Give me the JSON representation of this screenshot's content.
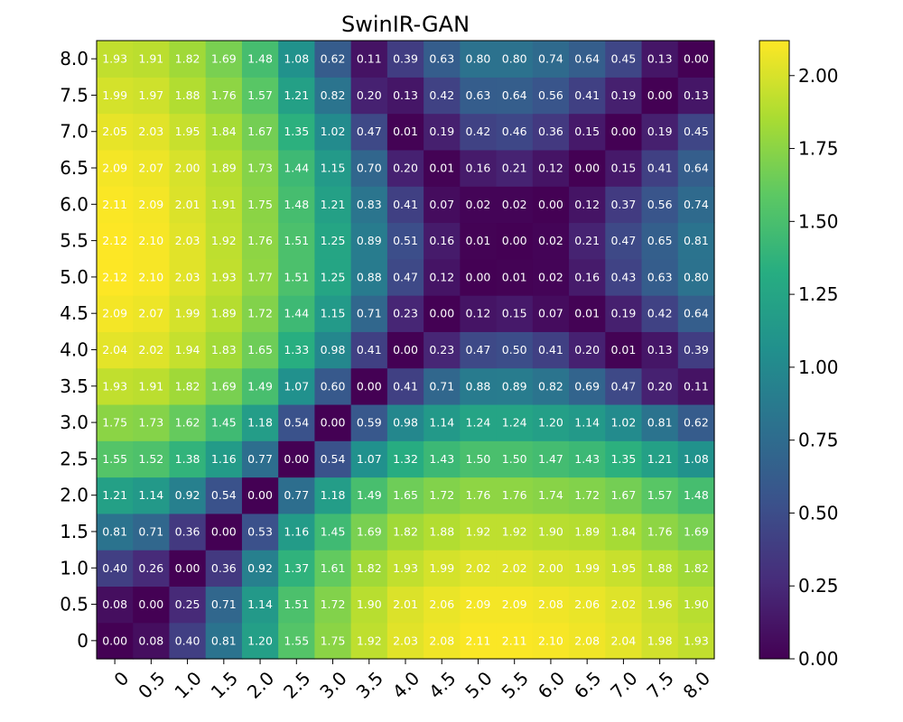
{
  "chart_data": {
    "type": "heatmap",
    "title": "SwinIR-GAN",
    "xlabel": "",
    "ylabel": "",
    "x_categories": [
      "0",
      "0.5",
      "1.0",
      "1.5",
      "2.0",
      "2.5",
      "3.0",
      "3.5",
      "4.0",
      "4.5",
      "5.0",
      "5.5",
      "6.0",
      "6.5",
      "7.0",
      "7.5",
      "8.0"
    ],
    "y_categories": [
      "0",
      "0.5",
      "1.0",
      "1.5",
      "2.0",
      "2.5",
      "3.0",
      "3.5",
      "4.0",
      "4.5",
      "5.0",
      "5.5",
      "6.0",
      "6.5",
      "7.0",
      "7.5",
      "8.0"
    ],
    "values_by_y": [
      [
        "0.00",
        "0.08",
        "0.40",
        "0.81",
        "1.20",
        "1.55",
        "1.75",
        "1.92",
        "2.03",
        "2.08",
        "2.11",
        "2.11",
        "2.10",
        "2.08",
        "2.04",
        "1.98",
        "1.93"
      ],
      [
        "0.08",
        "0.00",
        "0.25",
        "0.71",
        "1.14",
        "1.51",
        "1.72",
        "1.90",
        "2.01",
        "2.06",
        "2.09",
        "2.09",
        "2.08",
        "2.06",
        "2.02",
        "1.96",
        "1.90"
      ],
      [
        "0.40",
        "0.26",
        "0.00",
        "0.36",
        "0.92",
        "1.37",
        "1.61",
        "1.82",
        "1.93",
        "1.99",
        "2.02",
        "2.02",
        "2.00",
        "1.99",
        "1.95",
        "1.88",
        "1.82"
      ],
      [
        "0.81",
        "0.71",
        "0.36",
        "0.00",
        "0.53",
        "1.16",
        "1.45",
        "1.69",
        "1.82",
        "1.88",
        "1.92",
        "1.92",
        "1.90",
        "1.89",
        "1.84",
        "1.76",
        "1.69"
      ],
      [
        "1.21",
        "1.14",
        "0.92",
        "0.54",
        "0.00",
        "0.77",
        "1.18",
        "1.49",
        "1.65",
        "1.72",
        "1.76",
        "1.76",
        "1.74",
        "1.72",
        "1.67",
        "1.57",
        "1.48"
      ],
      [
        "1.55",
        "1.52",
        "1.38",
        "1.16",
        "0.77",
        "0.00",
        "0.54",
        "1.07",
        "1.32",
        "1.43",
        "1.50",
        "1.50",
        "1.47",
        "1.43",
        "1.35",
        "1.21",
        "1.08"
      ],
      [
        "1.75",
        "1.73",
        "1.62",
        "1.45",
        "1.18",
        "0.54",
        "0.00",
        "0.59",
        "0.98",
        "1.14",
        "1.24",
        "1.24",
        "1.20",
        "1.14",
        "1.02",
        "0.81",
        "0.62"
      ],
      [
        "1.93",
        "1.91",
        "1.82",
        "1.69",
        "1.49",
        "1.07",
        "0.60",
        "0.00",
        "0.41",
        "0.71",
        "0.88",
        "0.89",
        "0.82",
        "0.69",
        "0.47",
        "0.20",
        "0.11"
      ],
      [
        "2.04",
        "2.02",
        "1.94",
        "1.83",
        "1.65",
        "1.33",
        "0.98",
        "0.41",
        "0.00",
        "0.23",
        "0.47",
        "0.50",
        "0.41",
        "0.20",
        "0.01",
        "0.13",
        "0.39"
      ],
      [
        "2.09",
        "2.07",
        "1.99",
        "1.89",
        "1.72",
        "1.44",
        "1.15",
        "0.71",
        "0.23",
        "0.00",
        "0.12",
        "0.15",
        "0.07",
        "0.01",
        "0.19",
        "0.42",
        "0.64"
      ],
      [
        "2.12",
        "2.10",
        "2.03",
        "1.93",
        "1.77",
        "1.51",
        "1.25",
        "0.88",
        "0.47",
        "0.12",
        "0.00",
        "0.01",
        "0.02",
        "0.16",
        "0.43",
        "0.63",
        "0.80"
      ],
      [
        "2.12",
        "2.10",
        "2.03",
        "1.92",
        "1.76",
        "1.51",
        "1.25",
        "0.89",
        "0.51",
        "0.16",
        "0.01",
        "0.00",
        "0.02",
        "0.21",
        "0.47",
        "0.65",
        "0.81"
      ],
      [
        "2.11",
        "2.09",
        "2.01",
        "1.91",
        "1.75",
        "1.48",
        "1.21",
        "0.83",
        "0.41",
        "0.07",
        "0.02",
        "0.02",
        "0.00",
        "0.12",
        "0.37",
        "0.56",
        "0.74"
      ],
      [
        "2.09",
        "2.07",
        "2.00",
        "1.89",
        "1.73",
        "1.44",
        "1.15",
        "0.70",
        "0.20",
        "0.01",
        "0.16",
        "0.21",
        "0.12",
        "0.00",
        "0.15",
        "0.41",
        "0.64"
      ],
      [
        "2.05",
        "2.03",
        "1.95",
        "1.84",
        "1.67",
        "1.35",
        "1.02",
        "0.47",
        "0.01",
        "0.19",
        "0.42",
        "0.46",
        "0.36",
        "0.15",
        "0.00",
        "0.19",
        "0.45"
      ],
      [
        "1.99",
        "1.97",
        "1.88",
        "1.76",
        "1.57",
        "1.21",
        "0.82",
        "0.20",
        "0.13",
        "0.42",
        "0.63",
        "0.64",
        "0.56",
        "0.41",
        "0.19",
        "0.00",
        "0.13"
      ],
      [
        "1.93",
        "1.91",
        "1.82",
        "1.69",
        "1.48",
        "1.08",
        "0.62",
        "0.11",
        "0.39",
        "0.63",
        "0.80",
        "0.80",
        "0.74",
        "0.64",
        "0.45",
        "0.13",
        "0.00"
      ]
    ],
    "colorbar": {
      "colormap": "viridis",
      "min": 0.0,
      "max": 2.12,
      "ticks": [
        "0.00",
        "0.25",
        "0.50",
        "0.75",
        "1.00",
        "1.25",
        "1.50",
        "1.75",
        "2.00"
      ]
    },
    "y_origin": "bottom",
    "grid": false
  }
}
